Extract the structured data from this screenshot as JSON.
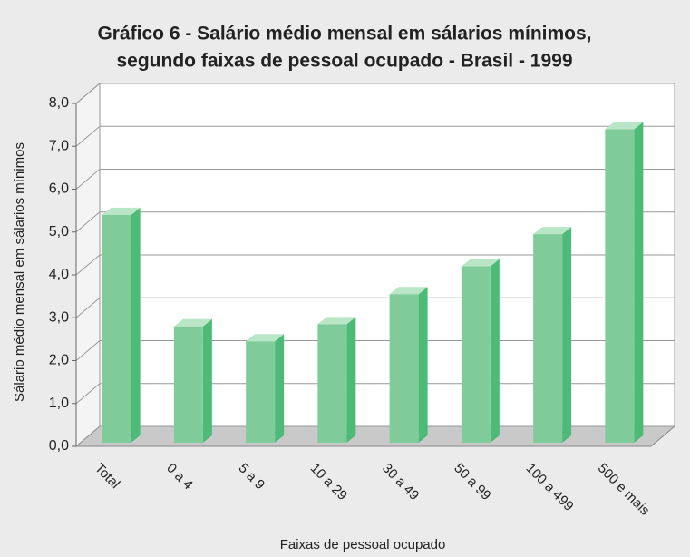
{
  "chart_data": {
    "type": "bar3d",
    "title": "Gráfico 6 - Salário médio mensal  em sálarios mínimos,",
    "subtitle": "segundo faixas de pessoal ocupado - Brasil - 1999",
    "x_label": "Faixas de pessoal ocupado",
    "y_label": "Sálario médio mensal em sálarios mínimos",
    "categories": [
      "Total",
      "0 a 4",
      "5 a 9",
      "10 a 29",
      "30 a 49",
      "50 a 99",
      "100 a 499",
      "500 e mais"
    ],
    "values": [
      5.4,
      2.8,
      2.45,
      2.85,
      3.55,
      4.2,
      4.95,
      7.4
    ],
    "color": "#7fcc9a",
    "ylim": [
      0,
      8
    ],
    "yticks": [
      {
        "value": 0,
        "label": "0,0"
      },
      {
        "value": 1,
        "label": "1,0"
      },
      {
        "value": 2,
        "label": "2,0"
      },
      {
        "value": 3,
        "label": "3,0"
      },
      {
        "value": 4,
        "label": "4,0"
      },
      {
        "value": 5,
        "label": "5,0"
      },
      {
        "value": 6,
        "label": "6,0"
      },
      {
        "value": 7,
        "label": "7,0"
      },
      {
        "value": 8,
        "label": "8,0"
      }
    ],
    "grid": true
  }
}
